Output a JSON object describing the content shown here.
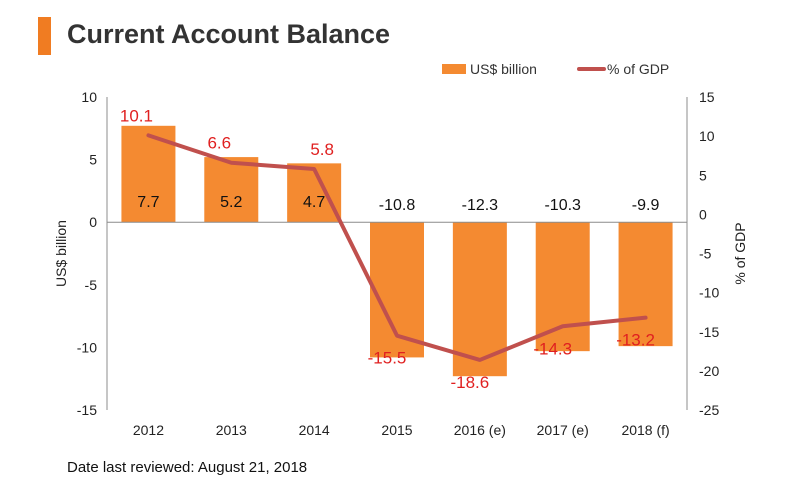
{
  "title": "Current Account Balance",
  "footer": "Date last reviewed: August 21, 2018",
  "colors": {
    "bar": "#f48a31",
    "line": "#c0504d",
    "line_label": "#e02020",
    "bar_label": "#111111",
    "accent": "#f07c22"
  },
  "chart_data": {
    "type": "bar",
    "categories": [
      "2012",
      "2013",
      "2014",
      "2015",
      "2016 (e)",
      "2017 (e)",
      "2018 (f)"
    ],
    "series": [
      {
        "name": "US$ billion",
        "type": "bar",
        "axis": "left",
        "values": [
          7.7,
          5.2,
          4.7,
          -10.8,
          -12.3,
          -10.3,
          -9.9
        ]
      },
      {
        "name": "% of GDP",
        "type": "line",
        "axis": "right",
        "values": [
          10.1,
          6.6,
          5.8,
          -15.5,
          -18.6,
          -14.3,
          -13.2
        ]
      }
    ],
    "ylabel": "US$ billion",
    "y2label": "% of GDP",
    "ylim": [
      -15,
      10
    ],
    "y2lim": [
      -25,
      15
    ],
    "yticks": [
      10,
      5,
      0,
      -5,
      -10,
      -15
    ],
    "y2ticks": [
      15,
      10,
      5,
      0,
      -5,
      -10,
      -15,
      -20,
      -25
    ],
    "legend": "top-right",
    "grid": false
  }
}
